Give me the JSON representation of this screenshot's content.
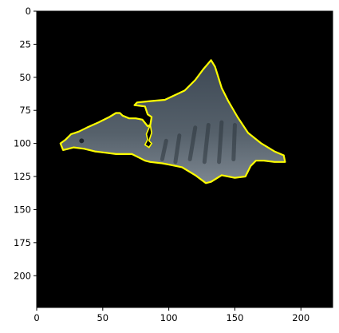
{
  "chart_data": {
    "type": "image",
    "title": "",
    "xlabel": "",
    "ylabel": "",
    "xlim": [
      0,
      224
    ],
    "ylim": [
      224,
      0
    ],
    "x_ticks": [
      0,
      50,
      100,
      150,
      200
    ],
    "y_ticks": [
      0,
      25,
      50,
      75,
      100,
      125,
      150,
      175,
      200
    ],
    "x_tick_labels": [
      "0",
      "50",
      "100",
      "150",
      "200"
    ],
    "y_tick_labels": [
      "0",
      "25",
      "50",
      "75",
      "100",
      "125",
      "150",
      "175",
      "200"
    ],
    "background_color": "#000000",
    "outline_color": "#ffff00",
    "object_color": "#4a5560",
    "outline_points": [
      [
        18,
        100
      ],
      [
        22,
        97
      ],
      [
        26,
        93
      ],
      [
        29,
        92
      ],
      [
        32,
        91
      ],
      [
        38,
        88
      ],
      [
        47,
        84
      ],
      [
        55,
        80
      ],
      [
        60,
        77
      ],
      [
        63,
        77
      ],
      [
        65,
        79
      ],
      [
        70,
        81
      ],
      [
        75,
        81
      ],
      [
        80,
        82
      ],
      [
        84,
        87
      ],
      [
        86,
        86
      ],
      [
        87,
        80
      ],
      [
        84,
        78
      ],
      [
        82,
        72
      ],
      [
        74,
        71
      ],
      [
        76,
        69
      ],
      [
        86,
        68
      ],
      [
        97,
        67
      ],
      [
        112,
        60
      ],
      [
        120,
        52
      ],
      [
        126,
        44
      ],
      [
        132,
        37
      ],
      [
        135,
        42
      ],
      [
        140,
        58
      ],
      [
        145,
        68
      ],
      [
        152,
        80
      ],
      [
        160,
        92
      ],
      [
        170,
        100
      ],
      [
        180,
        106
      ],
      [
        187,
        109
      ],
      [
        188,
        114
      ],
      [
        180,
        114
      ],
      [
        172,
        113
      ],
      [
        166,
        113
      ],
      [
        162,
        117
      ],
      [
        158,
        125
      ],
      [
        150,
        126
      ],
      [
        140,
        124
      ],
      [
        132,
        129
      ],
      [
        128,
        130
      ],
      [
        120,
        124
      ],
      [
        110,
        118
      ],
      [
        100,
        116
      ],
      [
        95,
        115
      ],
      [
        86,
        114
      ],
      [
        82,
        113
      ],
      [
        78,
        111
      ],
      [
        72,
        108
      ],
      [
        66,
        108
      ],
      [
        60,
        108
      ],
      [
        52,
        107
      ],
      [
        44,
        106
      ],
      [
        36,
        104
      ],
      [
        28,
        103
      ],
      [
        24,
        104
      ],
      [
        20,
        105
      ]
    ],
    "dorsal_notch_points": [
      [
        86,
        86
      ],
      [
        87,
        92
      ],
      [
        85,
        98
      ],
      [
        87,
        100
      ],
      [
        85,
        103
      ],
      [
        82,
        101
      ],
      [
        84,
        97
      ],
      [
        83,
        93
      ]
    ],
    "stripe_segments": [
      [
        [
          120,
          88
        ],
        [
          116,
          112
        ]
      ],
      [
        [
          130,
          86
        ],
        [
          127,
          114
        ]
      ],
      [
        [
          140,
          84
        ],
        [
          138,
          114
        ]
      ],
      [
        [
          150,
          86
        ],
        [
          149,
          112
        ]
      ],
      [
        [
          108,
          94
        ],
        [
          105,
          114
        ]
      ],
      [
        [
          98,
          98
        ],
        [
          95,
          112
        ]
      ]
    ]
  }
}
